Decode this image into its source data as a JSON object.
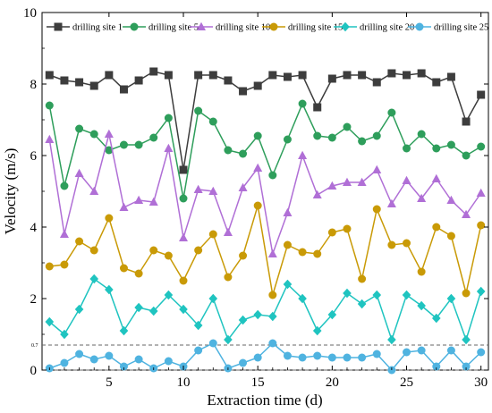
{
  "chart_data": {
    "type": "line",
    "xlabel": "Extraction time (d)",
    "ylabel": "Velocity (m/s)",
    "xlim": [
      0.5,
      30.5
    ],
    "ylim": [
      0,
      10
    ],
    "xticks": [
      5,
      10,
      15,
      20,
      25,
      30
    ],
    "yticks": [
      0,
      2,
      4,
      6,
      8,
      10
    ],
    "x": [
      1,
      2,
      3,
      4,
      5,
      6,
      7,
      8,
      9,
      10,
      11,
      12,
      13,
      14,
      15,
      16,
      17,
      18,
      19,
      20,
      21,
      22,
      23,
      24,
      25,
      26,
      27,
      28,
      29,
      30
    ],
    "reference_lines": [
      {
        "y": 0.7,
        "label": "0.7",
        "style": "dashed"
      },
      {
        "y": 0,
        "style": "dashed"
      }
    ],
    "legend_position": "top",
    "series": [
      {
        "name": "drilling site 1",
        "color": "#3d3d3d",
        "marker": "square",
        "values": [
          8.25,
          8.1,
          8.05,
          7.95,
          8.25,
          7.85,
          8.1,
          8.35,
          8.25,
          5.6,
          8.25,
          8.25,
          8.1,
          7.8,
          7.95,
          8.25,
          8.2,
          8.25,
          7.35,
          8.15,
          8.25,
          8.25,
          8.05,
          8.3,
          8.25,
          8.3,
          8.05,
          8.2,
          6.95,
          7.7
        ]
      },
      {
        "name": "drilling site 5",
        "color": "#2e9e5b",
        "marker": "circle",
        "values": [
          7.4,
          5.15,
          6.75,
          6.6,
          6.15,
          6.3,
          6.3,
          6.5,
          7.05,
          4.8,
          7.25,
          6.95,
          6.15,
          6.05,
          6.55,
          5.45,
          6.45,
          7.45,
          6.55,
          6.5,
          6.8,
          6.4,
          6.55,
          7.2,
          6.2,
          6.6,
          6.2,
          6.3,
          6.0,
          6.25
        ]
      },
      {
        "name": "drilling site 10",
        "color": "#b06fd6",
        "marker": "triangle",
        "values": [
          6.45,
          3.8,
          5.5,
          5.0,
          6.6,
          4.55,
          4.75,
          4.7,
          6.2,
          3.7,
          5.05,
          5.0,
          3.85,
          5.1,
          5.65,
          3.25,
          4.4,
          6.0,
          4.9,
          5.15,
          5.25,
          5.25,
          5.6,
          4.65,
          5.3,
          4.8,
          5.35,
          4.75,
          4.35,
          4.95
        ]
      },
      {
        "name": "drilling site 15",
        "color": "#c99a06",
        "marker": "circle",
        "values": [
          2.9,
          2.95,
          3.6,
          3.35,
          4.25,
          2.85,
          2.7,
          3.35,
          3.2,
          2.5,
          3.35,
          3.8,
          2.6,
          3.2,
          4.6,
          2.1,
          3.5,
          3.3,
          3.25,
          3.85,
          3.95,
          2.55,
          4.5,
          3.5,
          3.55,
          2.75,
          4.0,
          3.75,
          2.15,
          4.05
        ]
      },
      {
        "name": "drilling site 20",
        "color": "#1fc4c0",
        "marker": "diamond",
        "values": [
          1.35,
          1.0,
          1.7,
          2.55,
          2.25,
          1.1,
          1.75,
          1.65,
          2.1,
          1.7,
          1.25,
          2.0,
          0.85,
          1.4,
          1.55,
          1.5,
          2.4,
          2.0,
          1.1,
          1.55,
          2.15,
          1.85,
          2.1,
          0.85,
          2.1,
          1.8,
          1.45,
          2.0,
          0.85,
          2.2
        ]
      },
      {
        "name": "drilling site 25",
        "color": "#4fb3e0",
        "marker": "circle",
        "values": [
          0.05,
          0.2,
          0.45,
          0.3,
          0.4,
          0.1,
          0.3,
          0.05,
          0.25,
          0.1,
          0.55,
          0.75,
          0.05,
          0.2,
          0.35,
          0.75,
          0.4,
          0.35,
          0.4,
          0.35,
          0.35,
          0.35,
          0.45,
          0.0,
          0.5,
          0.55,
          0.1,
          0.55,
          0.1,
          0.5
        ]
      }
    ]
  }
}
